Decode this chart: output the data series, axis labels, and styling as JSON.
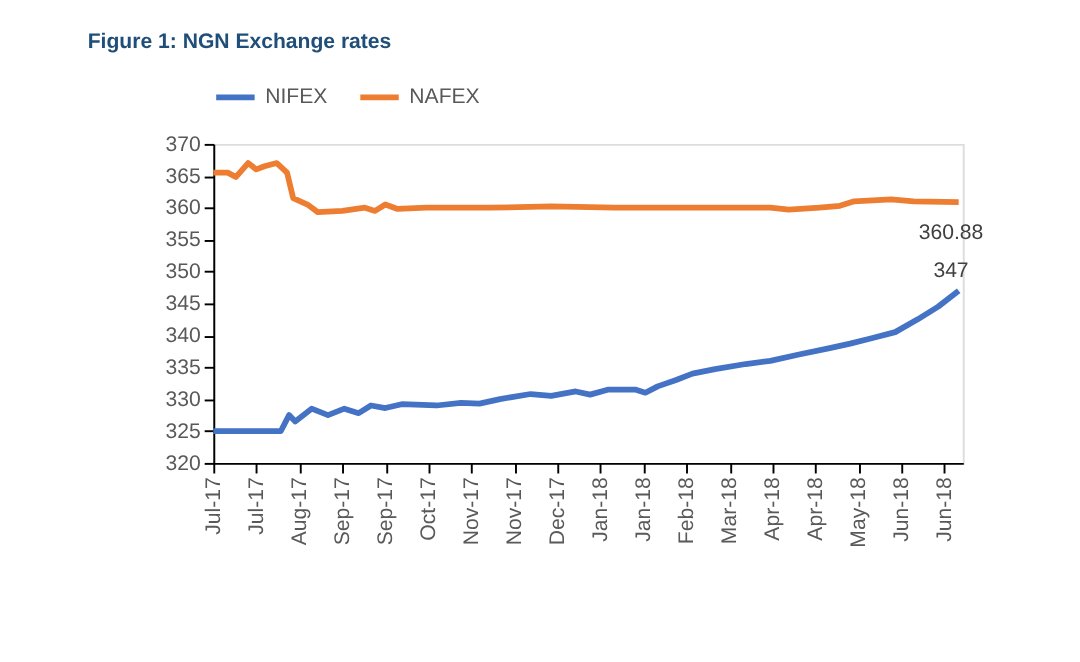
{
  "chart_data": {
    "type": "line",
    "title": "Figure 1: NGN Exchange rates",
    "series": [
      {
        "name": "NIFEX",
        "color": "#4472c4",
        "x": [
          "2017-07-03",
          "2017-07-20",
          "2017-08-05",
          "2017-08-09",
          "2017-08-12",
          "2017-08-20",
          "2017-08-28",
          "2017-09-05",
          "2017-09-12",
          "2017-09-18",
          "2017-09-25",
          "2017-10-03",
          "2017-10-20",
          "2017-11-01",
          "2017-11-10",
          "2017-11-20",
          "2017-12-05",
          "2017-12-15",
          "2017-12-27",
          "2018-01-03",
          "2018-01-12",
          "2018-01-25",
          "2018-01-30",
          "2018-02-05",
          "2018-02-14",
          "2018-02-22",
          "2018-03-05",
          "2018-03-20",
          "2018-04-01",
          "2018-04-15",
          "2018-04-30",
          "2018-05-10",
          "2018-05-20",
          "2018-06-01",
          "2018-06-12",
          "2018-06-22",
          "2018-07-02"
        ],
        "values": [
          325,
          325,
          325,
          327.5,
          326.5,
          328.5,
          327.5,
          328.5,
          327.8,
          329,
          328.6,
          329.2,
          329,
          329.4,
          329.3,
          330,
          330.8,
          330.5,
          331.2,
          330.7,
          331.5,
          331.5,
          331,
          332,
          333,
          334,
          334.7,
          335.5,
          336,
          337,
          338,
          338.7,
          339.5,
          340.5,
          342.5,
          344.5,
          347
        ]
      },
      {
        "name": "NAFEX",
        "color": "#ed7d31",
        "x": [
          "2017-07-03",
          "2017-07-10",
          "2017-07-14",
          "2017-07-20",
          "2017-07-24",
          "2017-07-28",
          "2017-08-03",
          "2017-08-08",
          "2017-08-11",
          "2017-08-18",
          "2017-08-23",
          "2017-09-04",
          "2017-09-15",
          "2017-09-20",
          "2017-09-25",
          "2017-10-01",
          "2017-10-15",
          "2017-11-15",
          "2017-12-15",
          "2018-01-15",
          "2018-02-15",
          "2018-03-15",
          "2018-04-01",
          "2018-04-10",
          "2018-04-25",
          "2018-05-05",
          "2018-05-12",
          "2018-05-30",
          "2018-06-10",
          "2018-07-02"
        ],
        "values": [
          365.5,
          365.5,
          364.8,
          367,
          366,
          366.5,
          367,
          365.5,
          361.5,
          360.5,
          359.3,
          359.5,
          360,
          359.5,
          360.5,
          359.8,
          360,
          360,
          360.2,
          360,
          360,
          360,
          360,
          359.7,
          360,
          360.3,
          361,
          361.3,
          361,
          360.88
        ]
      }
    ],
    "xlim": [
      "2017-07-03",
      "2018-07-04"
    ],
    "xticks": [
      {
        "value": "2017-07-03",
        "label": "Jul-17"
      },
      {
        "value": "2017-07-24",
        "label": "Jul-17"
      },
      {
        "value": "2017-08-14",
        "label": "Aug-17"
      },
      {
        "value": "2017-09-04",
        "label": "Sep-17"
      },
      {
        "value": "2017-09-25",
        "label": "Sep-17"
      },
      {
        "value": "2017-10-16",
        "label": "Oct-17"
      },
      {
        "value": "2017-11-06",
        "label": "Nov-17"
      },
      {
        "value": "2017-11-27",
        "label": "Nov-17"
      },
      {
        "value": "2017-12-18",
        "label": "Dec-17"
      },
      {
        "value": "2018-01-08",
        "label": "Jan-18"
      },
      {
        "value": "2018-01-29",
        "label": "Jan-18"
      },
      {
        "value": "2018-02-19",
        "label": "Feb-18"
      },
      {
        "value": "2018-03-12",
        "label": "Mar-18"
      },
      {
        "value": "2018-04-02",
        "label": "Apr-18"
      },
      {
        "value": "2018-04-23",
        "label": "Apr-18"
      },
      {
        "value": "2018-05-14",
        "label": "May-18"
      },
      {
        "value": "2018-06-04",
        "label": "Jun-18"
      },
      {
        "value": "2018-06-25",
        "label": "Jun-18"
      }
    ],
    "ylim": [
      320,
      370
    ],
    "yticks": [
      320,
      325,
      330,
      335,
      340,
      345,
      350,
      355,
      360,
      365,
      370
    ],
    "annotations": [
      {
        "text": "360.88",
        "x": "2018-07-02",
        "y": 360.88
      },
      {
        "text": "347",
        "x": "2018-07-02",
        "y": 347
      }
    ],
    "legend": "top",
    "grid": false,
    "marker": "none",
    "line_style": "solid"
  }
}
